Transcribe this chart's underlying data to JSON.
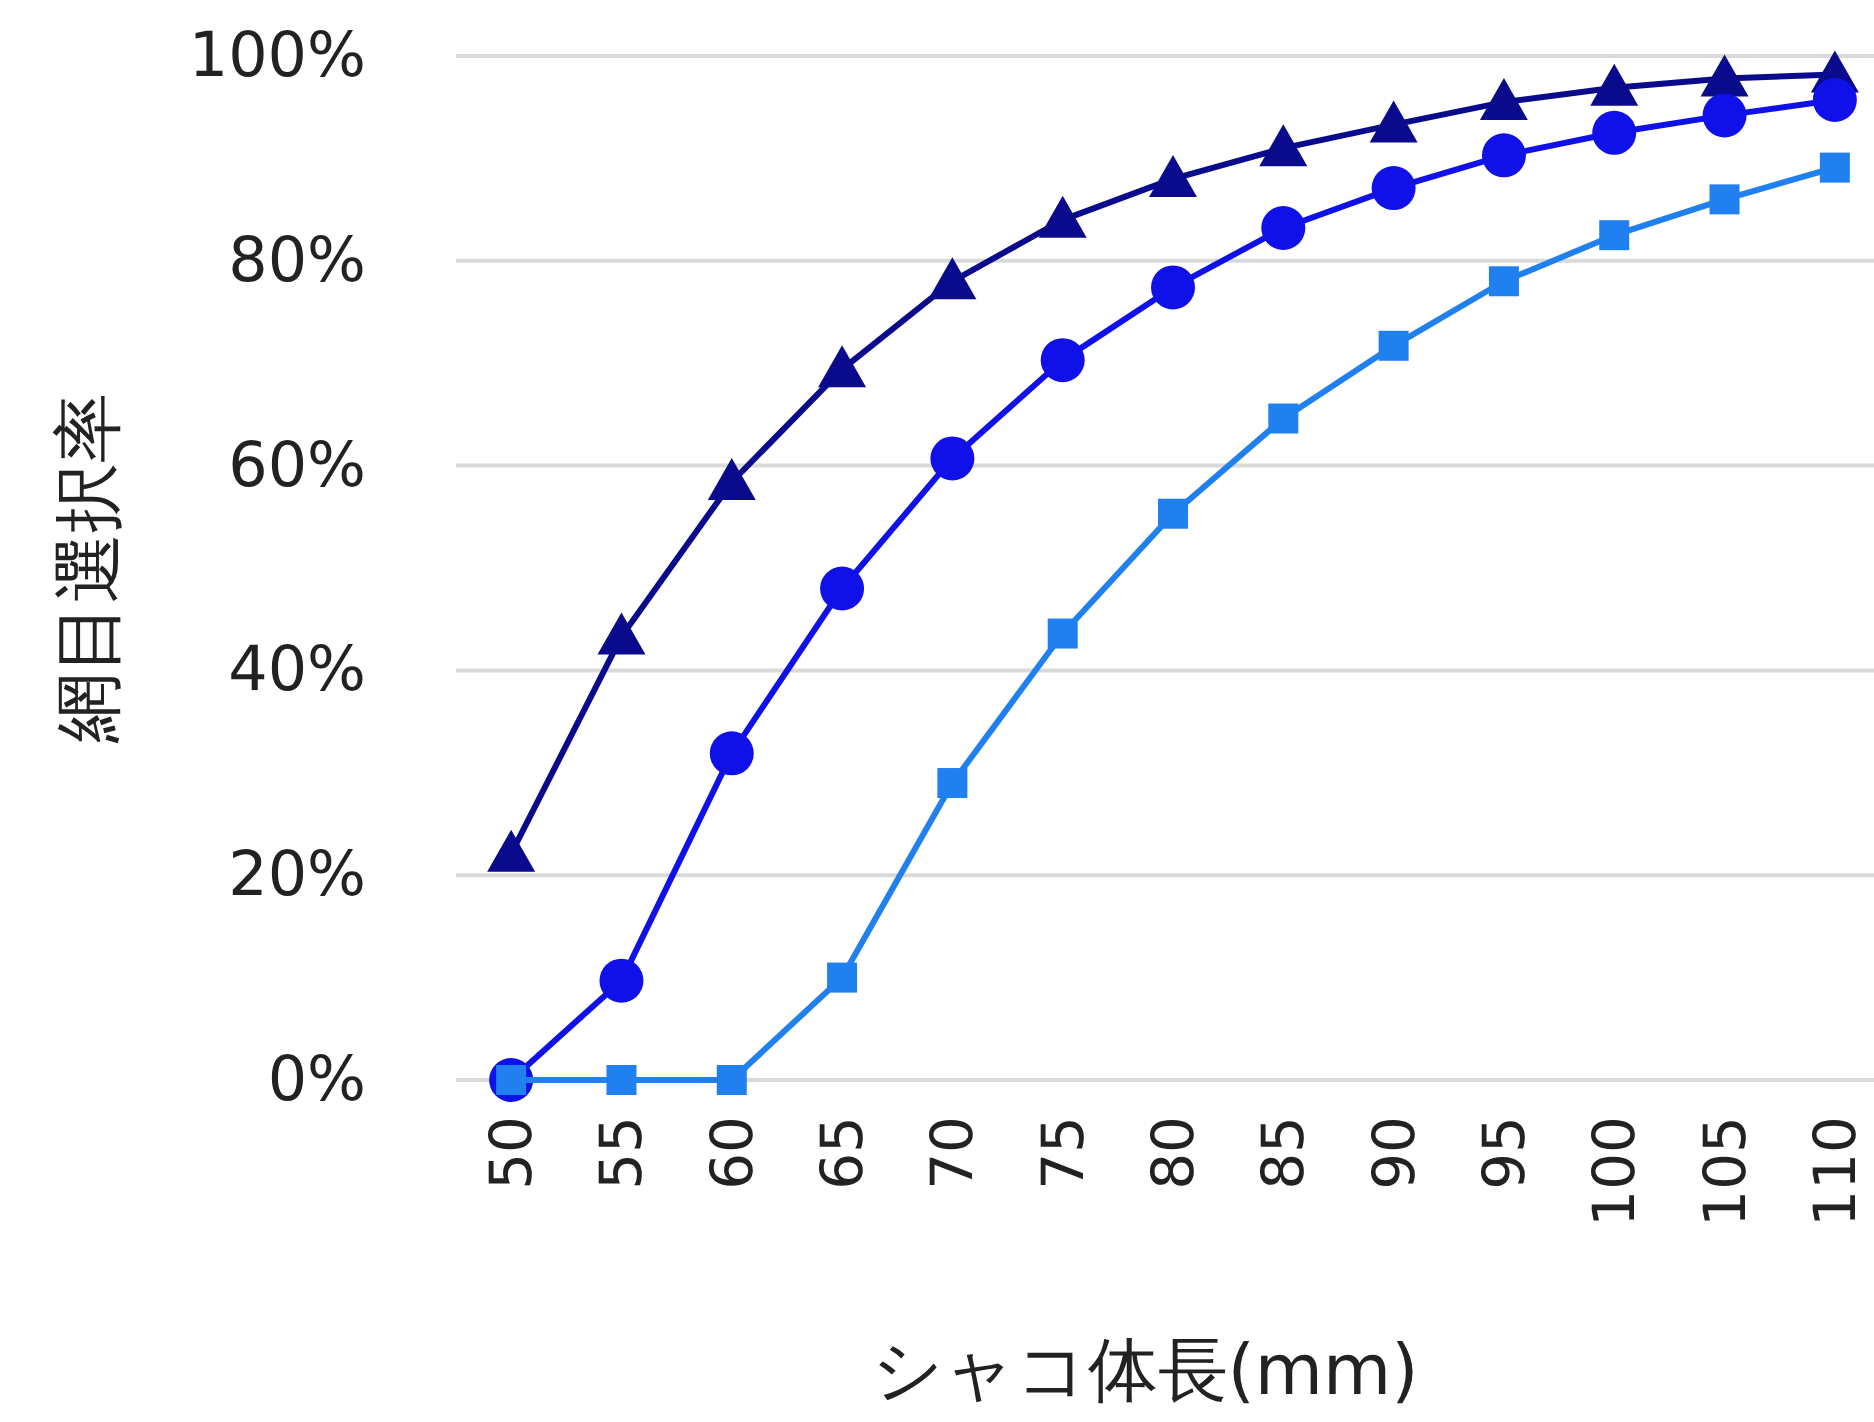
{
  "chart_data": {
    "type": "line",
    "xlabel": "シャコ体長(mm)",
    "ylabel": "網目選択率",
    "categories": [
      "50",
      "55",
      "60",
      "65",
      "70",
      "75",
      "80",
      "85",
      "90",
      "95",
      "100",
      "105",
      "110"
    ],
    "series": [
      {
        "color": "#0a0a8c",
        "marker": "triangle",
        "values": [
          22.1,
          43.3,
          58.4,
          69.4,
          78,
          84,
          88,
          91,
          93.3,
          95.5,
          96.9,
          97.8,
          98.2
        ]
      },
      {
        "color": "#1010e8",
        "marker": "circle",
        "values": [
          0,
          9.7,
          31.9,
          48,
          60.7,
          70.3,
          77.4,
          83.2,
          87.1,
          90.3,
          92.5,
          94.2,
          95.7
        ]
      },
      {
        "color": "#2080f0",
        "marker": "square",
        "values": [
          0,
          0,
          0,
          10,
          29,
          43.6,
          55.3,
          64.6,
          71.7,
          78,
          82.5,
          86,
          89.1
        ]
      }
    ],
    "ylim": [
      0,
      100
    ],
    "yticks": [
      {
        "value": 0,
        "label": "0%"
      },
      {
        "value": 20,
        "label": "20%"
      },
      {
        "value": 40,
        "label": "40%"
      },
      {
        "value": 60,
        "label": "60%"
      },
      {
        "value": 80,
        "label": "80%"
      },
      {
        "value": 100,
        "label": "100%"
      }
    ],
    "grid": "y"
  }
}
